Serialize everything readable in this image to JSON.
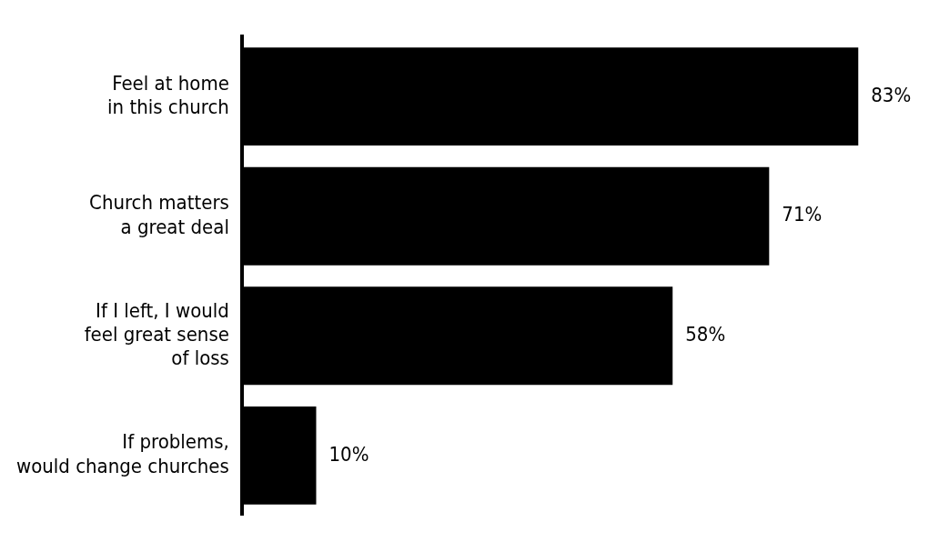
{
  "chart_data": {
    "type": "bar",
    "orientation": "horizontal",
    "categories": [
      "Feel at home\nin this church",
      "Church matters\na great deal",
      "If I left, I would\nfeel great sense\nof loss",
      "If problems,\nwould change churches"
    ],
    "values": [
      83,
      71,
      58,
      10
    ],
    "color": "#000000",
    "data_labels": true,
    "value_labels": [
      "83%",
      "71%",
      "58%",
      "10%"
    ],
    "tick_labels": "y"
  }
}
